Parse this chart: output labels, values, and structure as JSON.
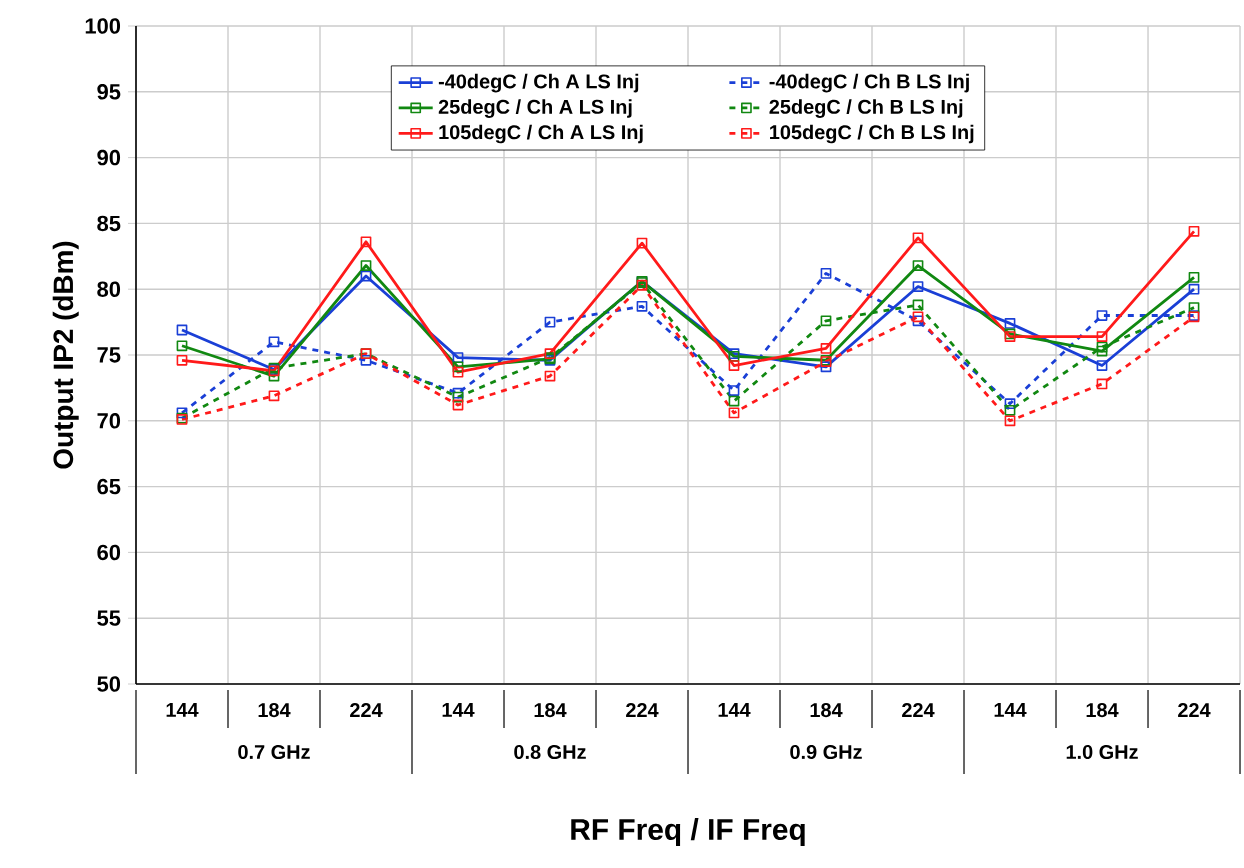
{
  "chart_data": {
    "type": "line",
    "xlabel": "RF Freq / IF Freq",
    "ylabel": "Output IP2 (dBm)",
    "categories": [
      "144",
      "184",
      "224",
      "144",
      "184",
      "224",
      "144",
      "184",
      "224",
      "144",
      "184",
      "224"
    ],
    "annotations": [
      "0.7 GHz",
      "0.8 GHz",
      "0.9 GHz",
      "1.0 GHz"
    ],
    "ylim": [
      50,
      100
    ],
    "yticks": [
      50,
      55,
      60,
      65,
      70,
      75,
      80,
      85,
      90,
      95,
      100
    ],
    "grid": true,
    "legend": "top",
    "marker": "square",
    "series": [
      {
        "name": "-40degC /  Ch A LS Inj",
        "color": "#1a3fd6",
        "line_style": "solid",
        "values": [
          76.9,
          73.9,
          81.0,
          74.8,
          74.6,
          80.6,
          75.1,
          74.1,
          80.2,
          77.4,
          74.2,
          80.0
        ]
      },
      {
        "name": "-40degC /  Ch B LS Inj",
        "color": "#1a3fd6",
        "line_style": "dashed",
        "values": [
          70.6,
          76.0,
          74.6,
          72.1,
          77.5,
          78.7,
          72.3,
          81.2,
          77.6,
          71.3,
          78.0,
          78.0
        ]
      },
      {
        "name": "25degC /  Ch A LS Inj",
        "color": "#118811",
        "line_style": "solid",
        "values": [
          75.7,
          73.4,
          81.8,
          74.1,
          74.7,
          80.6,
          74.9,
          74.6,
          81.8,
          76.6,
          75.3,
          80.9
        ]
      },
      {
        "name": "25degC /  Ch B LS Inj",
        "color": "#118811",
        "line_style": "dashed",
        "values": [
          70.2,
          74.0,
          75.1,
          71.8,
          74.8,
          80.5,
          71.5,
          77.6,
          78.8,
          70.8,
          75.6,
          78.6
        ]
      },
      {
        "name": "105degC /  Ch A LS Inj",
        "color": "#ff1a1a",
        "line_style": "solid",
        "values": [
          74.6,
          73.8,
          83.6,
          73.7,
          75.1,
          83.5,
          74.2,
          75.5,
          83.9,
          76.4,
          76.4,
          84.4
        ]
      },
      {
        "name": "105degC /  Ch B LS Inj",
        "color": "#ff1a1a",
        "line_style": "dashed",
        "values": [
          70.1,
          71.9,
          75.1,
          71.2,
          73.4,
          80.3,
          70.6,
          74.5,
          77.9,
          70.0,
          72.8,
          77.9
        ]
      }
    ]
  }
}
